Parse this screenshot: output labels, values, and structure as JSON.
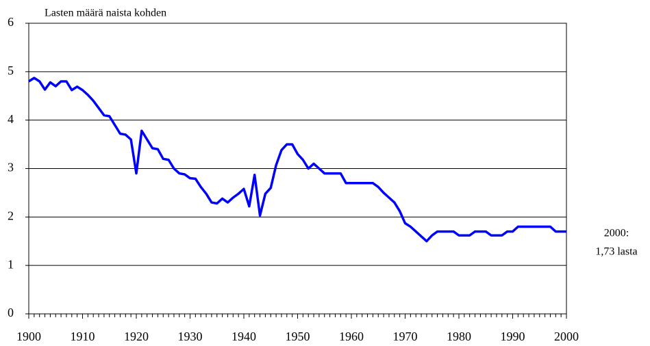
{
  "chart_data": {
    "type": "line",
    "y_axis_label": "Lasten määrä naista kohden",
    "annotation": [
      "2000:",
      "1,73 lasta"
    ],
    "color": "#0000ff",
    "x": [
      1900,
      1901,
      1902,
      1903,
      1904,
      1905,
      1906,
      1907,
      1908,
      1909,
      1910,
      1911,
      1912,
      1913,
      1914,
      1915,
      1916,
      1917,
      1918,
      1919,
      1920,
      1921,
      1922,
      1923,
      1924,
      1925,
      1926,
      1927,
      1928,
      1929,
      1930,
      1931,
      1932,
      1933,
      1934,
      1935,
      1936,
      1937,
      1938,
      1939,
      1940,
      1941,
      1942,
      1943,
      1944,
      1945,
      1946,
      1947,
      1948,
      1949,
      1950,
      1951,
      1952,
      1953,
      1954,
      1955,
      1956,
      1957,
      1958,
      1959,
      1960,
      1961,
      1962,
      1963,
      1964,
      1965,
      1966,
      1967,
      1968,
      1969,
      1970,
      1971,
      1972,
      1973,
      1974,
      1975,
      1976,
      1977,
      1978,
      1979,
      1980,
      1981,
      1982,
      1983,
      1984,
      1985,
      1986,
      1987,
      1988,
      1989,
      1990,
      1991,
      1992,
      1993,
      1994,
      1995,
      1996,
      1997,
      1998,
      1999,
      2000
    ],
    "values": [
      4.8,
      4.87,
      4.8,
      4.63,
      4.78,
      4.7,
      4.8,
      4.8,
      4.62,
      4.69,
      4.62,
      4.52,
      4.4,
      4.25,
      4.1,
      4.08,
      3.9,
      3.72,
      3.7,
      3.6,
      2.9,
      3.78,
      3.6,
      3.42,
      3.4,
      3.2,
      3.18,
      3.0,
      2.9,
      2.88,
      2.8,
      2.79,
      2.62,
      2.48,
      2.3,
      2.28,
      2.38,
      2.3,
      2.4,
      2.48,
      2.58,
      2.22,
      2.87,
      2.03,
      2.48,
      2.6,
      3.07,
      3.38,
      3.5,
      3.5,
      3.3,
      3.18,
      3.0,
      3.1,
      3.0,
      2.9,
      2.9,
      2.9,
      2.9,
      2.7,
      2.7,
      2.7,
      2.7,
      2.7,
      2.7,
      2.62,
      2.5,
      2.4,
      2.3,
      2.12,
      1.87,
      1.8,
      1.7,
      1.6,
      1.5,
      1.62,
      1.7,
      1.7,
      1.7,
      1.7,
      1.62,
      1.62,
      1.62,
      1.7,
      1.7,
      1.7,
      1.62,
      1.62,
      1.62,
      1.7,
      1.7,
      1.8,
      1.8,
      1.8,
      1.8,
      1.8,
      1.8,
      1.8,
      1.7,
      1.7,
      1.7
    ],
    "xlim": [
      1900,
      2000
    ],
    "xticks": [
      1900,
      1910,
      1920,
      1930,
      1940,
      1950,
      1960,
      1970,
      1980,
      1990,
      2000
    ],
    "ylim": [
      0,
      6
    ],
    "yticks": [
      0,
      1,
      2,
      3,
      4,
      5,
      6
    ],
    "grid": true
  }
}
